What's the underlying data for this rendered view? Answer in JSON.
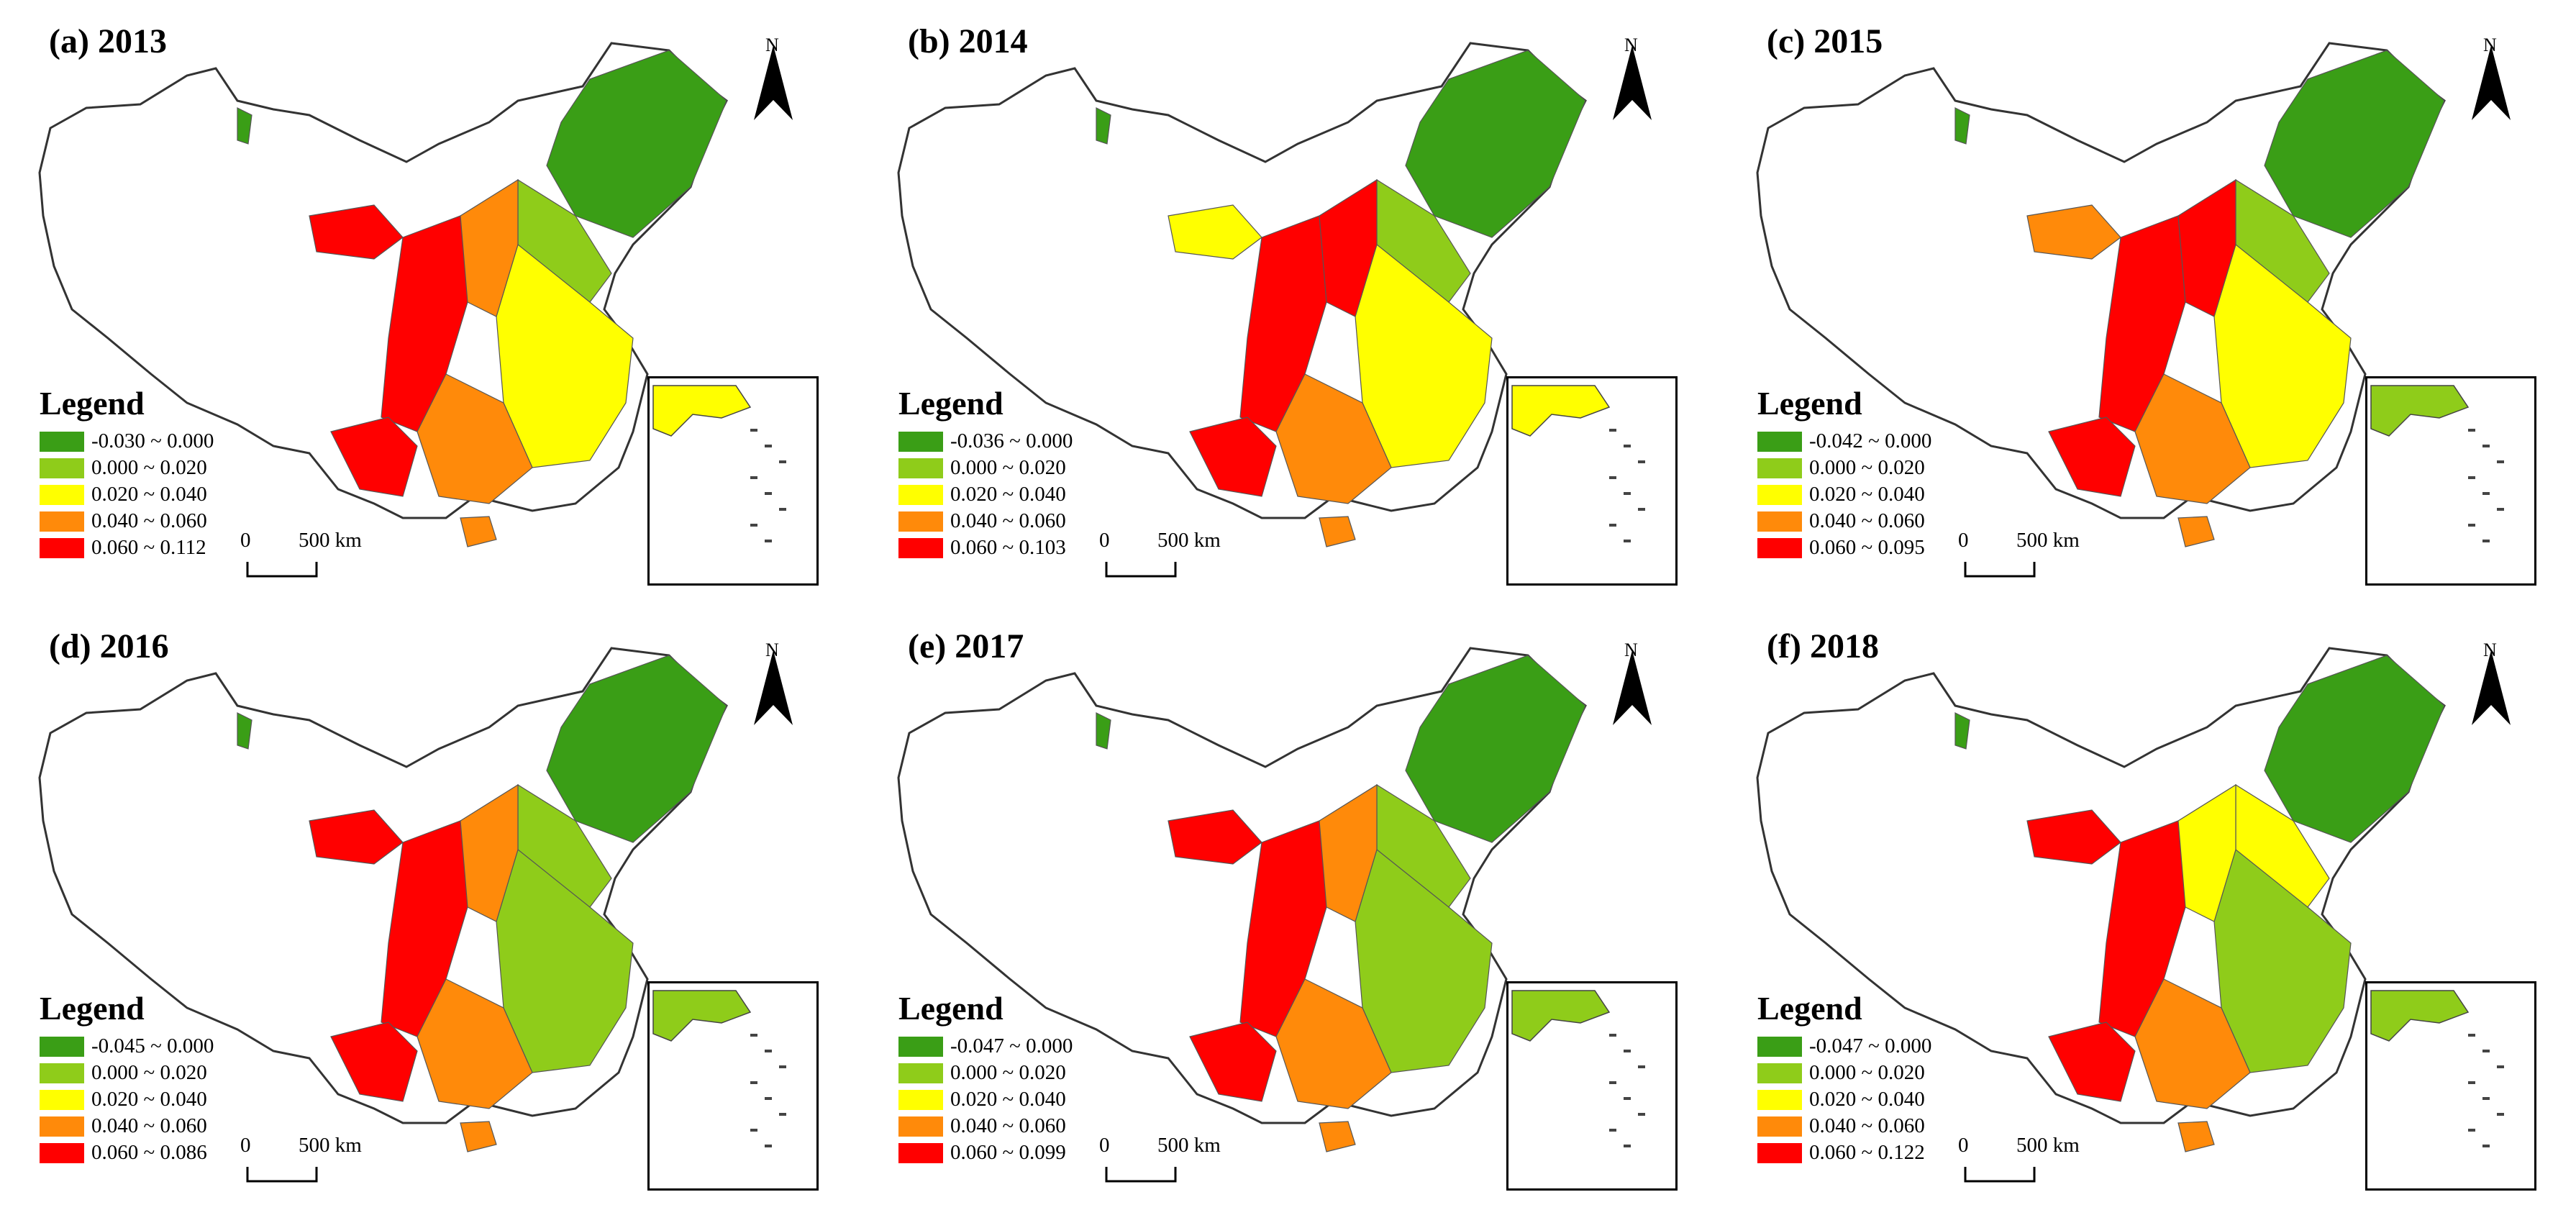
{
  "figure": {
    "north_label": "N",
    "scale_zero": "0",
    "scale_text": "500 km",
    "legend_title": "Legend",
    "class_colors": [
      "#3a9e16",
      "#8fcc1a",
      "#ffff00",
      "#ff8a0a",
      "#ff0000"
    ],
    "panels": [
      {
        "title": "(a) 2013",
        "classes": [
          "-0.030 ~ 0.000",
          "0.000 ~ 0.020",
          "0.020 ~ 0.040",
          "0.040 ~ 0.060",
          "0.060 ~ 0.112"
        ]
      },
      {
        "title": "(b) 2014",
        "classes": [
          "-0.036 ~ 0.000",
          "0.000 ~ 0.020",
          "0.020 ~ 0.040",
          "0.040 ~ 0.060",
          "0.060 ~ 0.103"
        ]
      },
      {
        "title": "(c) 2015",
        "classes": [
          "-0.042 ~ 0.000",
          "0.000 ~ 0.020",
          "0.020 ~ 0.040",
          "0.040 ~ 0.060",
          "0.060 ~ 0.095"
        ]
      },
      {
        "title": "(d) 2016",
        "classes": [
          "-0.045 ~ 0.000",
          "0.000 ~ 0.020",
          "0.020 ~ 0.040",
          "0.040 ~ 0.060",
          "0.060 ~ 0.086"
        ]
      },
      {
        "title": "(e) 2017",
        "classes": [
          "-0.047 ~ 0.000",
          "0.000 ~ 0.020",
          "0.020 ~ 0.040",
          "0.040 ~ 0.060",
          "0.060 ~ 0.099"
        ]
      },
      {
        "title": "(f) 2018",
        "classes": [
          "-0.047 ~ 0.000",
          "0.000 ~ 0.020",
          "0.020 ~ 0.040",
          "0.040 ~ 0.060",
          "0.060 ~ 0.122"
        ]
      }
    ]
  }
}
